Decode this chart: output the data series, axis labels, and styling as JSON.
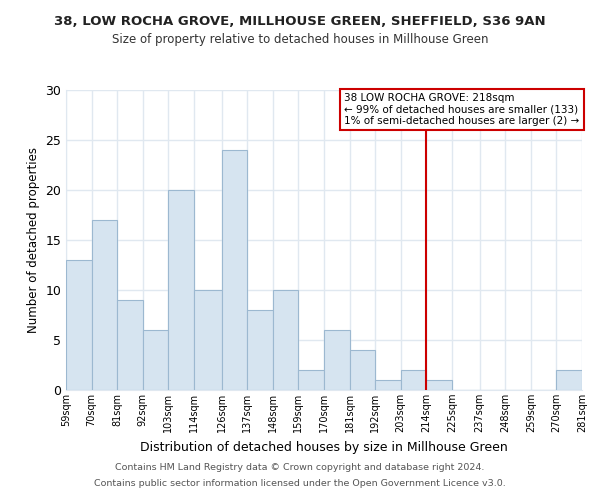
{
  "title1": "38, LOW ROCHA GROVE, MILLHOUSE GREEN, SHEFFIELD, S36 9AN",
  "title2": "Size of property relative to detached houses in Millhouse Green",
  "xlabel": "Distribution of detached houses by size in Millhouse Green",
  "ylabel": "Number of detached properties",
  "footer1": "Contains HM Land Registry data © Crown copyright and database right 2024.",
  "footer2": "Contains public sector information licensed under the Open Government Licence v3.0.",
  "annotation_title": "38 LOW ROCHA GROVE: 218sqm",
  "annotation_line1": "← 99% of detached houses are smaller (133)",
  "annotation_line2": "1% of semi-detached houses are larger (2) →",
  "bar_color": "#d6e4f0",
  "bar_edge_color": "#9cb8d0",
  "vline_x": 214,
  "vline_color": "#cc0000",
  "bin_edges": [
    59,
    70,
    81,
    92,
    103,
    114,
    126,
    137,
    148,
    159,
    170,
    181,
    192,
    203,
    214,
    225,
    237,
    248,
    259,
    270,
    281
  ],
  "bin_heights": [
    13,
    17,
    9,
    6,
    20,
    10,
    24,
    8,
    10,
    2,
    6,
    4,
    1,
    2,
    1,
    0,
    0,
    0,
    0,
    2
  ],
  "ylim": [
    0,
    30
  ],
  "yticks": [
    0,
    5,
    10,
    15,
    20,
    25,
    30
  ],
  "background_color": "#ffffff",
  "grid_color": "#e0e8f0",
  "annotation_box_color": "#ffffff",
  "annotation_box_edge": "#cc0000"
}
